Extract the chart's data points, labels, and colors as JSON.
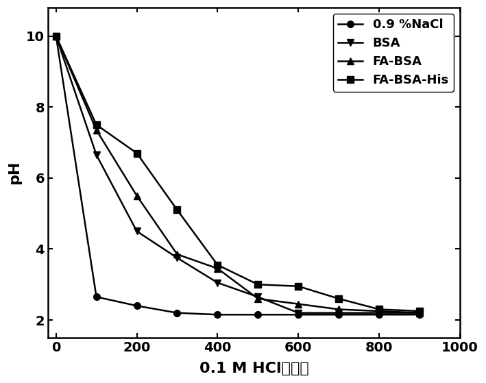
{
  "series": [
    {
      "label": "0.9 %NaCl",
      "marker": "o",
      "x": [
        0,
        100,
        200,
        300,
        400,
        500,
        600,
        700,
        800,
        900
      ],
      "y": [
        10.0,
        2.65,
        2.4,
        2.2,
        2.15,
        2.15,
        2.15,
        2.15,
        2.15,
        2.15
      ]
    },
    {
      "label": "BSA",
      "marker": "v",
      "x": [
        0,
        100,
        200,
        300,
        400,
        500,
        600,
        700,
        800,
        900
      ],
      "y": [
        10.0,
        6.65,
        4.5,
        3.75,
        3.05,
        2.65,
        2.2,
        2.2,
        2.2,
        2.2
      ]
    },
    {
      "label": "FA-BSA",
      "marker": "^",
      "x": [
        0,
        100,
        200,
        300,
        400,
        500,
        600,
        700,
        800,
        900
      ],
      "y": [
        10.0,
        7.35,
        5.5,
        3.85,
        3.45,
        2.6,
        2.45,
        2.3,
        2.25,
        2.2
      ]
    },
    {
      "label": "FA-BSA-His",
      "marker": "s",
      "x": [
        0,
        100,
        200,
        300,
        400,
        500,
        600,
        700,
        800,
        900
      ],
      "y": [
        10.0,
        7.5,
        6.7,
        5.1,
        3.55,
        3.0,
        2.95,
        2.6,
        2.3,
        2.25
      ]
    }
  ],
  "xlabel": "0.1 M HCl的体积",
  "ylabel": "pH",
  "xlim": [
    -20,
    960
  ],
  "ylim": [
    1.5,
    10.8
  ],
  "xticks": [
    0,
    200,
    400,
    600,
    800,
    1000
  ],
  "yticks": [
    2,
    4,
    6,
    8,
    10
  ],
  "line_color": "#000000",
  "linewidth": 1.8,
  "markersize": 7,
  "legend_loc": "upper right",
  "xlabel_fontsize": 16,
  "ylabel_fontsize": 16,
  "tick_fontsize": 14,
  "legend_fontsize": 13
}
